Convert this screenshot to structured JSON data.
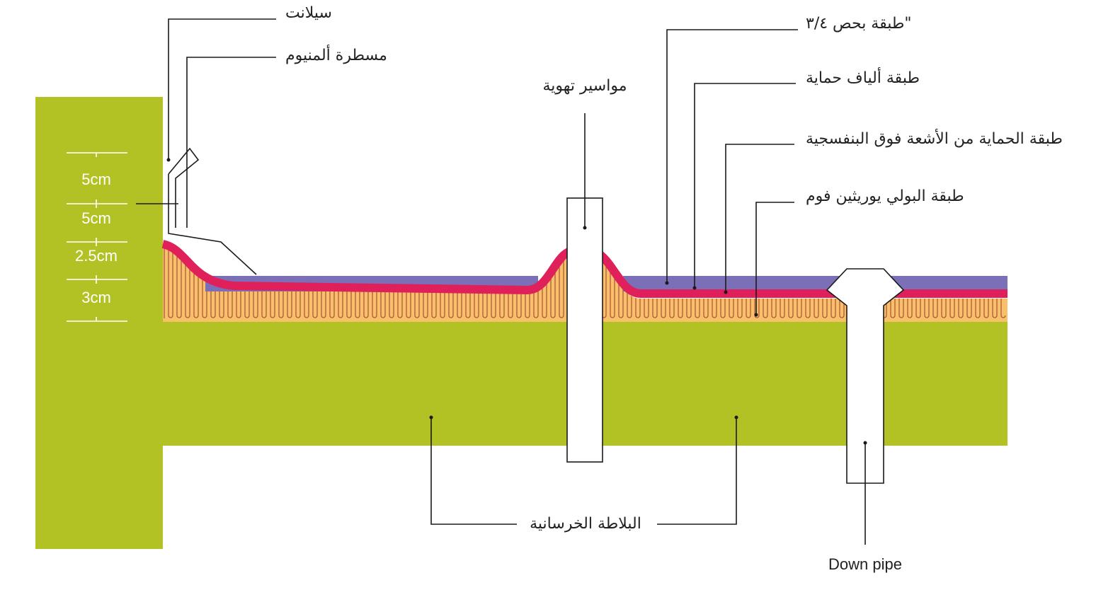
{
  "labels": {
    "sealant": "سيلانت",
    "aluminum_ruler": "مسطرة ألمنيوم",
    "vent_pipes": "مواسير تهوية",
    "gravel_layer": "طبقة بحص ٣/٤\"",
    "protective_fiber": "طبقة ألياف حماية",
    "uv_protection": "طبقة الحماية من الأشعة فوق البنفسجية",
    "pu_foam": "طبقة البولي يوريثين فوم",
    "concrete_slab": "البلاطة الخرسانية",
    "down_pipe": "Down pipe"
  },
  "dimensions": [
    "5cm",
    "5cm",
    "2.5cm",
    "3cm"
  ],
  "colors": {
    "concrete": "#b2c224",
    "foam": "#f7c16a",
    "foam_wave": "#b5543f",
    "uv_layer": "#e0205a",
    "gravel": "#7b6fb8",
    "pipe": "#ffffff",
    "line": "#1a1a1a"
  }
}
